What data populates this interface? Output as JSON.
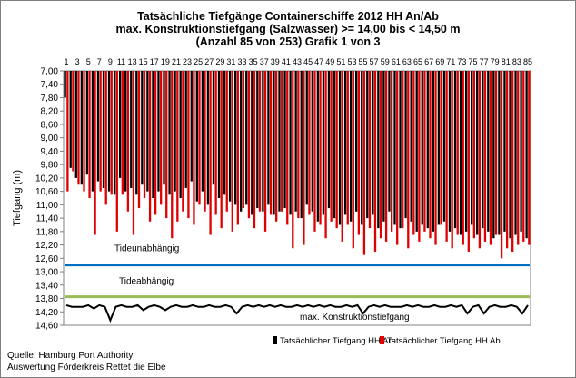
{
  "chart_data": {
    "type": "bar",
    "title": [
      "Tatsächliche Tiefgänge Containerschiffe  2012 HH An/Ab",
      "max. Konstruktionstiefgang  (Salzwasser)  >= 14,00 bis < 14,50 m",
      "(Anzahl 85 von 253) Grafik 1 von 3"
    ],
    "ylabel": "Tiefgang (m)",
    "ylim": [
      7.0,
      14.6
    ],
    "y_inverted": true,
    "y_ticks": [
      "7,00",
      "7,40",
      "7,80",
      "8,20",
      "8,60",
      "9,00",
      "9,40",
      "9,80",
      "10,20",
      "10,60",
      "11,00",
      "11,40",
      "11,80",
      "12,20",
      "12,60",
      "13,00",
      "13,40",
      "13,80",
      "14,20",
      "14,60"
    ],
    "x_ticks": [
      "1",
      "3",
      "5",
      "7",
      "9",
      "11",
      "13",
      "15",
      "17",
      "19",
      "21",
      "23",
      "25",
      "27",
      "29",
      "31",
      "33",
      "35",
      "37",
      "39",
      "41",
      "43",
      "45",
      "47",
      "49",
      "51",
      "53",
      "55",
      "57",
      "59",
      "61",
      "63",
      "65",
      "67",
      "69",
      "71",
      "73",
      "75",
      "77",
      "79",
      "81",
      "83",
      "85"
    ],
    "categories": [
      1,
      2,
      3,
      4,
      5,
      6,
      7,
      8,
      9,
      10,
      11,
      12,
      13,
      14,
      15,
      16,
      17,
      18,
      19,
      20,
      21,
      22,
      23,
      24,
      25,
      26,
      27,
      28,
      29,
      30,
      31,
      32,
      33,
      34,
      35,
      36,
      37,
      38,
      39,
      40,
      41,
      42,
      43,
      44,
      45,
      46,
      47,
      48,
      49,
      50,
      51,
      52,
      53,
      54,
      55,
      56,
      57,
      58,
      59,
      60,
      61,
      62,
      63,
      64,
      65,
      66,
      67,
      68,
      69,
      70,
      71,
      72,
      73,
      74,
      75,
      76,
      77,
      78,
      79,
      80,
      81,
      82,
      83,
      84,
      85
    ],
    "series": [
      {
        "name": "Tatsächlicher Tiefgang HH An",
        "color": "#000000",
        "values": [
          7.8,
          9.9,
          10.2,
          10.4,
          10.1,
          10.6,
          10.3,
          10.5,
          10.6,
          10.7,
          10.2,
          10.6,
          10.5,
          10.7,
          10.4,
          10.6,
          10.8,
          10.6,
          10.4,
          10.7,
          10.6,
          10.8,
          10.5,
          10.3,
          10.9,
          10.6,
          11.0,
          10.4,
          10.8,
          10.7,
          10.9,
          11.0,
          11.2,
          11.0,
          11.3,
          11.1,
          11.2,
          11.0,
          11.3,
          11.2,
          11.1,
          11.3,
          11.2,
          11.4,
          11.0,
          11.2,
          11.5,
          11.3,
          11.1,
          11.4,
          11.6,
          11.3,
          11.5,
          11.2,
          11.6,
          11.4,
          11.3,
          11.7,
          11.5,
          11.2,
          11.6,
          11.7,
          11.4,
          11.5,
          11.8,
          11.6,
          11.7,
          11.8,
          11.6,
          11.5,
          11.8,
          11.7,
          11.9,
          11.8,
          11.6,
          11.9,
          11.7,
          11.8,
          12.0,
          11.9,
          11.8,
          12.0,
          11.9,
          11.8,
          12.0
        ]
      },
      {
        "name": "Tatsächlicher Tiefgang HH Ab",
        "color": "#e00000",
        "values": [
          10.6,
          10.0,
          10.4,
          10.6,
          10.8,
          11.9,
          10.6,
          11.0,
          10.7,
          11.8,
          10.7,
          11.2,
          11.9,
          11.1,
          10.8,
          11.5,
          11.3,
          11.0,
          11.4,
          12.0,
          11.5,
          11.2,
          11.4,
          11.6,
          11.0,
          11.2,
          11.9,
          11.3,
          11.7,
          11.2,
          11.8,
          11.6,
          11.1,
          11.4,
          11.7,
          11.2,
          11.8,
          11.3,
          11.5,
          11.2,
          11.6,
          12.3,
          11.4,
          12.2,
          11.3,
          11.8,
          11.6,
          12.0,
          11.5,
          11.7,
          12.1,
          11.6,
          12.3,
          11.9,
          12.5,
          11.7,
          12.4,
          12.0,
          12.1,
          11.8,
          12.2,
          11.7,
          12.3,
          11.9,
          12.1,
          11.8,
          12.0,
          12.2,
          11.6,
          12.1,
          12.3,
          11.9,
          12.2,
          12.4,
          12.0,
          12.3,
          12.1,
          12.2,
          11.9,
          12.6,
          12.3,
          12.4,
          12.2,
          12.1,
          12.2
        ]
      }
    ],
    "reference_lines": [
      {
        "label": "Tideunabhängig",
        "value": 12.8,
        "color": "#0070c0"
      },
      {
        "label": "Tideabhängig",
        "value": 13.75,
        "color": "#9bbb59"
      },
      {
        "label": "max. Konstruktionstiefgang",
        "values": [
          14.0,
          14.05,
          14.05,
          14.05,
          14.0,
          14.1,
          14.0,
          14.05,
          14.45,
          14.05,
          14.0,
          14.05,
          14.05,
          14.0,
          14.15,
          14.05,
          14.0,
          14.05,
          14.15,
          14.05,
          14.0,
          14.05,
          14.05,
          14.0,
          14.05,
          14.05,
          14.0,
          14.05,
          14.05,
          14.0,
          14.05,
          14.25,
          14.05,
          14.0,
          14.05,
          14.0,
          14.05,
          14.0,
          14.05,
          14.0,
          14.05,
          14.05,
          14.0,
          14.05,
          14.0,
          14.05,
          14.0,
          14.05,
          14.0,
          14.05,
          14.05,
          14.0,
          14.05,
          14.0,
          14.25,
          14.05,
          14.0,
          14.05,
          14.0,
          14.05,
          14.05,
          14.05,
          14.0,
          14.05,
          14.0,
          14.05,
          14.05,
          14.0,
          14.05,
          14.05,
          14.0,
          14.05,
          14.0,
          14.25,
          14.05,
          14.0,
          14.25,
          14.05,
          14.0,
          14.05,
          14.05,
          14.0,
          14.05,
          14.25,
          14.0
        ],
        "color": "#000000"
      }
    ],
    "grid": false,
    "legend": "bottom"
  },
  "footer": {
    "source": "Quelle: Hamburg Port Authority",
    "analysis": "Auswertung Förderkreis Rettet die Elbe"
  }
}
